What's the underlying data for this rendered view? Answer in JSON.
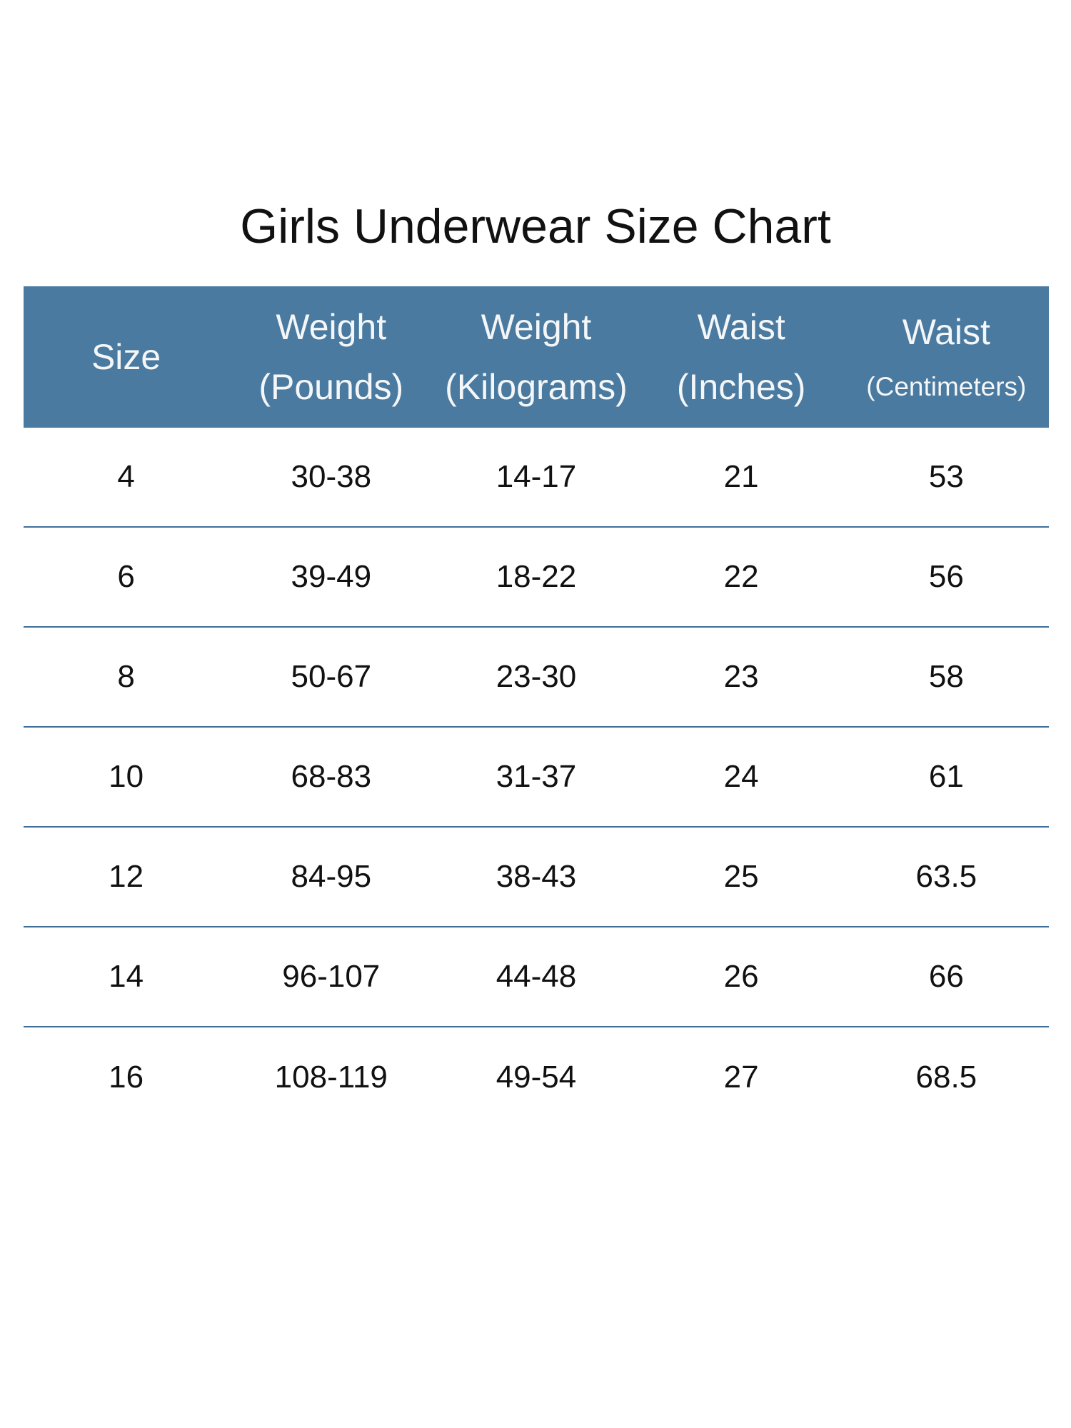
{
  "title": "Girls Underwear Size Chart",
  "colors": {
    "header_bg": "#4a7aa0",
    "header_text": "#f4f6f8",
    "row_divider": "#3f6e99",
    "body_text": "#111111"
  },
  "table": {
    "headers": [
      {
        "line1": "Size",
        "line2": ""
      },
      {
        "line1": "Weight",
        "line2": "(Pounds)"
      },
      {
        "line1": "Weight",
        "line2": "(Kilograms)"
      },
      {
        "line1": "Waist",
        "line2": "(Inches)"
      },
      {
        "line1": "Waist",
        "line2": "(Centimeters)"
      }
    ],
    "rows": [
      [
        "4",
        "30-38",
        "14-17",
        "21",
        "53"
      ],
      [
        "6",
        "39-49",
        "18-22",
        "22",
        "56"
      ],
      [
        "8",
        "50-67",
        "23-30",
        "23",
        "58"
      ],
      [
        "10",
        "68-83",
        "31-37",
        "24",
        "61"
      ],
      [
        "12",
        "84-95",
        "38-43",
        "25",
        "63.5"
      ],
      [
        "14",
        "96-107",
        "44-48",
        "26",
        "66"
      ],
      [
        "16",
        "108-119",
        "49-54",
        "27",
        "68.5"
      ]
    ]
  }
}
